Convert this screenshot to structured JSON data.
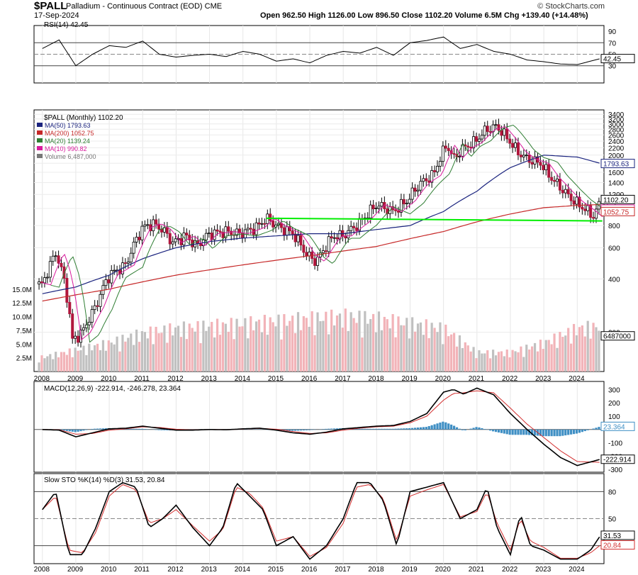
{
  "header": {
    "symbol": "$PALL",
    "name": "Palladium - Continuous Contract (EOD)",
    "exchange": "CME",
    "date": "17-Sep-2024",
    "quote": "Open 962.50  High 1126.00  Low 896.50  Close 1102.20  Volume 6.5M  Chg +139.40 (+14.48%)",
    "brand": "© StockCharts.com"
  },
  "chart_data": [
    {
      "type": "line",
      "panel": "rsi",
      "title": "RSI(14) 42.45",
      "ylim": [
        0,
        100
      ],
      "yticks": [
        30,
        50,
        70,
        90
      ],
      "last_label": "42.45",
      "reference_lines": [
        30,
        50,
        70
      ],
      "x": [
        2008,
        2008.5,
        2009,
        2009.5,
        2010,
        2010.5,
        2011,
        2011.5,
        2012,
        2012.5,
        2013,
        2013.5,
        2014,
        2014.5,
        2015,
        2015.5,
        2016,
        2016.5,
        2017,
        2017.5,
        2018,
        2018.5,
        2019,
        2019.5,
        2020,
        2020.5,
        2021,
        2021.5,
        2022,
        2022.5,
        2023,
        2023.5,
        2024,
        2024.7
      ],
      "values": [
        60,
        75,
        30,
        50,
        65,
        62,
        73,
        50,
        45,
        48,
        50,
        46,
        55,
        50,
        38,
        42,
        35,
        48,
        55,
        52,
        62,
        48,
        70,
        74,
        80,
        60,
        67,
        55,
        50,
        40,
        37,
        33,
        32,
        42.45
      ]
    },
    {
      "type": "candlestick",
      "panel": "price",
      "title": "$PALL (Monthly) 1102.20",
      "scale": "log",
      "ylim": [
        120,
        3600
      ],
      "yticks": [
        200,
        400,
        600,
        800,
        1000,
        1200,
        1400,
        1600,
        1800,
        2000,
        2200,
        2400,
        2600,
        2800,
        3000,
        3200,
        3400
      ],
      "xticks": [
        "2008",
        "2009",
        "2010",
        "2011",
        "2012",
        "2013",
        "2014",
        "2015",
        "2016",
        "2017",
        "2018",
        "2019",
        "2020",
        "2021",
        "2022",
        "2023",
        "2024"
      ],
      "legend": [
        {
          "label": "MA(50) 1793.63",
          "color": "#1a237e"
        },
        {
          "label": "MA(200) 1052.75",
          "color": "#c62828"
        },
        {
          "label": "MA(20) 1139.24",
          "color": "#2e7d32"
        },
        {
          "label": "MA(10) 990.82",
          "color": "#d81b9c"
        },
        {
          "label": "Volume 6,487,000",
          "color": "#777777"
        }
      ],
      "price_knots_x": [
        2007.75,
        2008.0,
        2008.4,
        2008.6,
        2008.9,
        2009.2,
        2009.6,
        2010.0,
        2010.5,
        2011.0,
        2011.3,
        2011.6,
        2011.9,
        2012.3,
        2012.6,
        2013.0,
        2013.5,
        2013.9,
        2014.4,
        2014.7,
        2015.0,
        2015.5,
        2015.9,
        2016.2,
        2016.7,
        2017.0,
        2017.5,
        2018.0,
        2018.5,
        2018.9,
        2019.3,
        2019.7,
        2020.1,
        2020.3,
        2020.6,
        2020.9,
        2021.3,
        2021.6,
        2021.9,
        2022.2,
        2022.5,
        2022.9,
        2023.2,
        2023.6,
        2023.9,
        2024.2,
        2024.5,
        2024.7
      ],
      "price_knots_y": [
        380,
        370,
        560,
        430,
        180,
        200,
        280,
        420,
        480,
        780,
        820,
        760,
        640,
        700,
        610,
        720,
        740,
        720,
        780,
        880,
        800,
        720,
        550,
        500,
        700,
        700,
        830,
        1050,
        960,
        1100,
        1380,
        1550,
        2300,
        1900,
        2200,
        2350,
        2800,
        2900,
        2500,
        2100,
        1900,
        1800,
        1500,
        1250,
        1100,
        1000,
        900,
        1102.2
      ],
      "ohlc_last": {
        "open": 962.5,
        "high": 1126.0,
        "low": 896.5,
        "close": 1102.2
      },
      "trendline": {
        "start": [
          2014.7,
          880
        ],
        "end": [
          2024.75,
          850
        ],
        "color": "#00ee00"
      },
      "last_labels": [
        {
          "text": "1102.20",
          "color": "#000000"
        },
        {
          "text": "1793.63",
          "color": "#1a237e"
        },
        {
          "text": "990.82",
          "color": "#d81b9c"
        },
        {
          "text": "1052.75",
          "color": "#c62828"
        }
      ],
      "ma50_knots_x": [
        2008,
        2009,
        2010,
        2011,
        2012,
        2013,
        2014,
        2015,
        2016,
        2017,
        2018,
        2019,
        2020,
        2021,
        2022,
        2023,
        2024,
        2024.7
      ],
      "ma50_knots_y": [
        330,
        360,
        420,
        520,
        600,
        650,
        680,
        700,
        720,
        720,
        760,
        800,
        960,
        1250,
        1700,
        2000,
        1950,
        1793.63
      ],
      "ma200_knots_x": [
        2008,
        2010,
        2012,
        2014,
        2016,
        2018,
        2020,
        2021,
        2022,
        2023,
        2024,
        2024.7
      ],
      "ma200_knots_y": [
        300,
        350,
        420,
        480,
        540,
        610,
        740,
        840,
        930,
        1010,
        1040,
        1052.75
      ],
      "volume": {
        "ylim": [
          0,
          16000000
        ],
        "yticks": [
          "2.5M",
          "5.0M",
          "7.5M",
          "10.0M",
          "12.5M",
          "15.0M"
        ],
        "ytick_values": [
          2500000,
          5000000,
          7500000,
          10000000,
          12500000,
          15000000
        ],
        "last_label": "6487000",
        "knots_x": [
          2008,
          2009,
          2010,
          2011,
          2012,
          2013,
          2014,
          2015,
          2016,
          2017,
          2018,
          2019,
          2020,
          2021,
          2022,
          2023,
          2024,
          2024.7
        ],
        "knots_y": [
          3000000,
          4500000,
          6000000,
          8000000,
          9000000,
          9500000,
          10000000,
          10500000,
          11000000,
          11500000,
          11000000,
          10000000,
          9000000,
          4000000,
          4000000,
          6000000,
          9000000,
          9500000
        ]
      }
    },
    {
      "type": "line",
      "panel": "macd",
      "title": "MACD(12,26,9) -222.914, -246.278, 23.364",
      "ylim": [
        -320,
        360
      ],
      "yticks": [
        -300,
        -200,
        -100,
        100,
        200,
        300
      ],
      "last_labels": [
        "23.364",
        "-222.914"
      ],
      "x": [
        2008,
        2008.5,
        2009,
        2009.5,
        2010,
        2010.5,
        2011,
        2011.5,
        2012,
        2012.5,
        2013,
        2013.5,
        2014,
        2014.5,
        2015,
        2015.5,
        2016,
        2016.5,
        2017,
        2017.5,
        2018,
        2018.5,
        2019,
        2019.5,
        2020,
        2020.3,
        2020.6,
        2021,
        2021.5,
        2022,
        2022.5,
        2023,
        2023.5,
        2024,
        2024.7
      ],
      "macd": [
        0,
        -5,
        -55,
        -25,
        5,
        10,
        25,
        10,
        -5,
        -5,
        0,
        -2,
        5,
        10,
        -5,
        -25,
        -35,
        -20,
        5,
        15,
        25,
        30,
        60,
        120,
        280,
        300,
        265,
        310,
        260,
        120,
        0,
        -110,
        -210,
        -270,
        -222.914
      ],
      "signal": [
        0,
        -2,
        -35,
        -30,
        -5,
        5,
        20,
        15,
        2,
        -3,
        0,
        -1,
        3,
        8,
        2,
        -15,
        -30,
        -25,
        -5,
        10,
        20,
        25,
        50,
        100,
        220,
        270,
        275,
        290,
        275,
        160,
        40,
        -60,
        -160,
        -240,
        -246.278
      ],
      "histogram_last": 23.364
    },
    {
      "type": "line",
      "panel": "stochastic",
      "title": "Slow STO %K(14) %D(3) 31.53, 20.84",
      "ylim": [
        0,
        100
      ],
      "yticks": [
        20,
        50,
        80
      ],
      "last_labels": [
        "31.53",
        "20.84"
      ],
      "x": [
        2008,
        2008.4,
        2008.8,
        2009.2,
        2009.6,
        2010,
        2010.4,
        2010.8,
        2011.2,
        2011.6,
        2012,
        2012.5,
        2013,
        2013.4,
        2013.8,
        2014.2,
        2014.6,
        2015,
        2015.5,
        2016,
        2016.5,
        2017,
        2017.4,
        2017.8,
        2018.2,
        2018.6,
        2019,
        2019.5,
        2020,
        2020.5,
        2021,
        2021.3,
        2021.6,
        2022,
        2022.3,
        2022.6,
        2023,
        2023.5,
        2024,
        2024.4,
        2024.7
      ],
      "k": [
        60,
        80,
        10,
        10,
        40,
        80,
        90,
        85,
        40,
        50,
        65,
        40,
        20,
        40,
        90,
        75,
        60,
        20,
        30,
        5,
        20,
        50,
        90,
        90,
        70,
        20,
        80,
        85,
        90,
        50,
        60,
        85,
        40,
        10,
        55,
        20,
        15,
        5,
        5,
        15,
        31.53
      ],
      "d": [
        60,
        75,
        15,
        12,
        35,
        75,
        88,
        82,
        45,
        50,
        60,
        42,
        25,
        38,
        85,
        78,
        62,
        25,
        30,
        8,
        18,
        45,
        85,
        88,
        72,
        25,
        75,
        82,
        88,
        52,
        58,
        80,
        45,
        15,
        50,
        25,
        18,
        6,
        6,
        12,
        20.84
      ]
    }
  ]
}
